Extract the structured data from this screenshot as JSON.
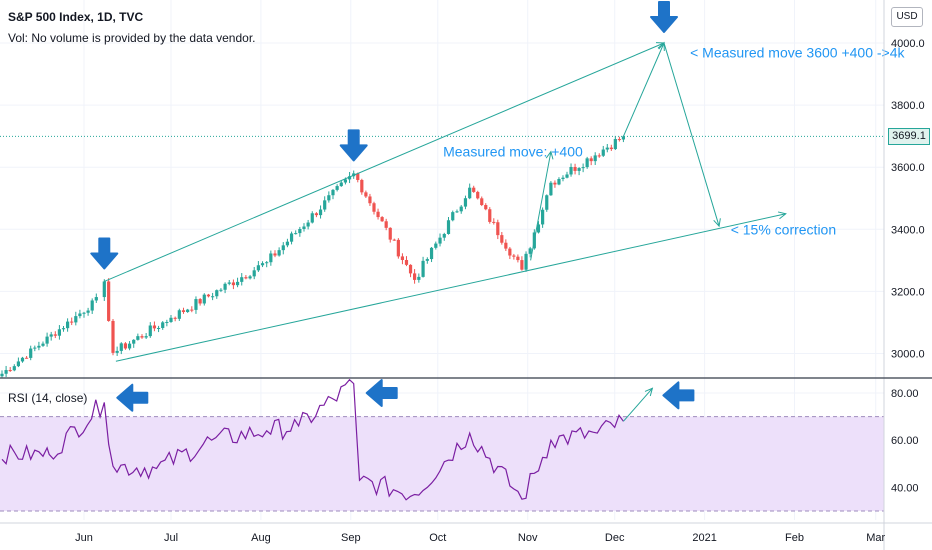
{
  "header": {
    "title": "S&P 500 Index, 1D, TVC",
    "volume_note": "Vol: No volume is provided by the data vendor.",
    "currency": "USD",
    "last_price": "3699.1"
  },
  "colors": {
    "up": "#26a69a",
    "down": "#ef5350",
    "annotation_text": "#2196f3",
    "arrow_blue": "#1e73c8",
    "trendline": "#26a69a",
    "rsi_line": "#7b1fa2",
    "rsi_band": "#ede0fa"
  },
  "chart_data": [
    {
      "type": "candlestick",
      "title": "S&P 500 Index, 1D, TVC",
      "y_ticks": [
        "3000.0",
        "3200.0",
        "3400.0",
        "3600.0",
        "3800.0",
        "4000.0"
      ],
      "x_ticks": [
        "Jun",
        "Jul",
        "Aug",
        "Sep",
        "Oct",
        "Nov",
        "Dec",
        "2021",
        "Feb",
        "Mar"
      ],
      "ylim": [
        2910,
        4055
      ],
      "last_price": 3699.1,
      "key_points": [
        {
          "date": "2020-06-08",
          "close": 3232
        },
        {
          "date": "2020-06-11",
          "close": 3002
        },
        {
          "date": "2020-07-01",
          "close": 3115
        },
        {
          "date": "2020-08-03",
          "close": 3294
        },
        {
          "date": "2020-09-02",
          "close": 3580
        },
        {
          "date": "2020-09-23",
          "close": 3237
        },
        {
          "date": "2020-10-12",
          "close": 3534
        },
        {
          "date": "2020-10-30",
          "close": 3270
        },
        {
          "date": "2020-11-09",
          "close": 3550
        },
        {
          "date": "2020-12-04",
          "close": 3699
        }
      ],
      "trendlines": [
        {
          "from": [
            "2020-06-08",
            3232
          ],
          "to": [
            "2020-12-18",
            4000
          ]
        },
        {
          "from": [
            "2020-06-12",
            2975
          ],
          "to": [
            "2021-01-29",
            3450
          ]
        }
      ],
      "projection": [
        [
          "2020-12-04",
          3699
        ],
        [
          "2020-12-18",
          4000
        ],
        [
          "2021-01-06",
          3410
        ]
      ],
      "annotations": [
        {
          "text": "Measured move: +400",
          "at": [
            "2020-11-20",
            3650
          ]
        },
        {
          "text": "< Measured move 3600 +400 ->4k",
          "at": [
            "2020-12-27",
            3970
          ]
        },
        {
          "text": "< 15% correction",
          "at": [
            "2021-01-10",
            3400
          ]
        }
      ]
    },
    {
      "type": "line",
      "title": "RSI (14, close)",
      "y_ticks": [
        "40.00",
        "60.00",
        "80.00"
      ],
      "band": [
        30,
        70
      ],
      "ylim": [
        27,
        89
      ],
      "series": [
        {
          "name": "RSI (14, close)",
          "points": [
            [
              "2020-05-20",
              54
            ],
            [
              "2020-06-08",
              76
            ],
            [
              "2020-06-11",
              49
            ],
            [
              "2020-06-26",
              48
            ],
            [
              "2020-07-15",
              60
            ],
            [
              "2020-08-03",
              64
            ],
            [
              "2020-08-14",
              66
            ],
            [
              "2020-09-02",
              84
            ],
            [
              "2020-09-03",
              63
            ],
            [
              "2020-09-04",
              43
            ],
            [
              "2020-09-23",
              37
            ],
            [
              "2020-10-12",
              63
            ],
            [
              "2020-10-30",
              35
            ],
            [
              "2020-11-09",
              60
            ],
            [
              "2020-11-25",
              63
            ],
            [
              "2020-12-04",
              68
            ]
          ]
        }
      ],
      "projection": [
        [
          "2020-12-04",
          68
        ],
        [
          "2020-12-14",
          82
        ]
      ]
    }
  ]
}
